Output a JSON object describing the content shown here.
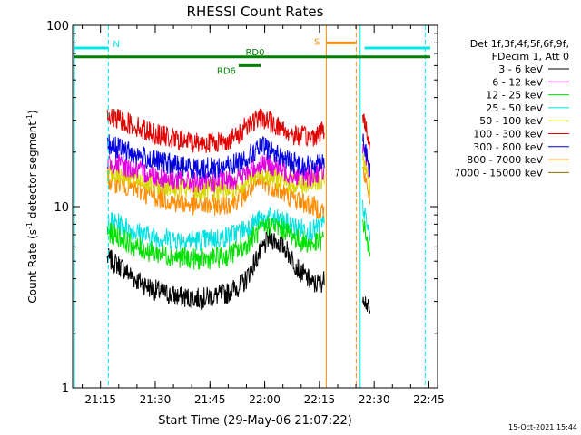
{
  "chart_data": {
    "type": "line",
    "title": "RHESSI Count Rates",
    "xlabel": "Start Time (29-May-06 21:07:22)",
    "ylabel_main": "Count Rate (s",
    "ylabel_sup": "-1",
    "ylabel_mid": " detector segment",
    "ylabel_sup2": "-1",
    "ylabel_end": ")",
    "x_range_minutes_after_21_07_22": [
      0,
      100
    ],
    "x_ticks": [
      {
        "label": "21:15",
        "t": 7.63
      },
      {
        "label": "21:30",
        "t": 22.63
      },
      {
        "label": "21:45",
        "t": 37.63
      },
      {
        "label": "22:00",
        "t": 52.63
      },
      {
        "label": "22:15",
        "t": 67.63
      },
      {
        "label": "22:30",
        "t": 82.63
      },
      {
        "label": "22:45",
        "t": 97.63
      }
    ],
    "y_scale": "log",
    "ylim": [
      1,
      100
    ],
    "y_ticks": [
      {
        "label": "1",
        "v": 1
      },
      {
        "label": "10",
        "v": 10
      },
      {
        "label": "100",
        "v": 100
      }
    ],
    "legend_header": [
      "Det 1f,3f,4f,5f,6f,9f,",
      "FDecim 1, Att 0"
    ],
    "legend_placement": "right",
    "timestamp": "15-Oct-2021 15:44",
    "series": [
      {
        "name": "3 - 6 keV",
        "color": "#000000",
        "points": [
          [
            9.5,
            5.2
          ],
          [
            13,
            4.7
          ],
          [
            17,
            4.0
          ],
          [
            22,
            3.5
          ],
          [
            28,
            3.2
          ],
          [
            35,
            3.1
          ],
          [
            42,
            3.3
          ],
          [
            47,
            3.8
          ],
          [
            50,
            5.0
          ],
          [
            54,
            6.8
          ],
          [
            58,
            6.0
          ],
          [
            62,
            4.5
          ],
          [
            66,
            3.7
          ],
          [
            69,
            3.9
          ]
        ],
        "points_b": [
          [
            79.5,
            3.3
          ],
          [
            81.5,
            2.6
          ]
        ]
      },
      {
        "name": "6 - 12 keV",
        "color": "#e000e0",
        "points": [
          [
            9.5,
            17.5
          ],
          [
            13,
            17
          ],
          [
            17,
            16
          ],
          [
            22,
            15
          ],
          [
            28,
            14
          ],
          [
            35,
            13.5
          ],
          [
            42,
            13.8
          ],
          [
            46,
            14.5
          ],
          [
            49,
            16
          ],
          [
            52,
            17.5
          ],
          [
            56,
            16.5
          ],
          [
            60,
            15
          ],
          [
            65,
            14.8
          ],
          [
            69,
            16
          ]
        ],
        "points_b": [
          [
            79.5,
            22
          ],
          [
            81.5,
            14
          ]
        ]
      },
      {
        "name": "12 - 25 keV",
        "color": "#00e000",
        "points": [
          [
            9.5,
            7.2
          ],
          [
            13,
            6.8
          ],
          [
            17,
            6.0
          ],
          [
            22,
            5.6
          ],
          [
            28,
            5.3
          ],
          [
            35,
            5.1
          ],
          [
            42,
            5.3
          ],
          [
            47,
            6.0
          ],
          [
            50,
            7.0
          ],
          [
            54,
            8.0
          ],
          [
            58,
            7.5
          ],
          [
            62,
            6.5
          ],
          [
            66,
            6.2
          ],
          [
            69,
            6.6
          ]
        ],
        "points_b": [
          [
            79.5,
            8.5
          ],
          [
            81.5,
            5.4
          ]
        ]
      },
      {
        "name": "25 - 50 keV",
        "color": "#00e0e0",
        "points": [
          [
            9.5,
            8.3
          ],
          [
            13,
            8.0
          ],
          [
            17,
            7.3
          ],
          [
            22,
            6.8
          ],
          [
            28,
            6.6
          ],
          [
            35,
            6.5
          ],
          [
            42,
            6.8
          ],
          [
            47,
            7.5
          ],
          [
            50,
            8.2
          ],
          [
            54,
            8.7
          ],
          [
            58,
            8.2
          ],
          [
            62,
            7.6
          ],
          [
            66,
            7.4
          ],
          [
            69,
            8.0
          ]
        ],
        "points_b": [
          [
            79.5,
            10
          ],
          [
            81.5,
            6.8
          ]
        ]
      },
      {
        "name": "50 - 100 keV",
        "color": "#d8d800",
        "points": [
          [
            9.5,
            15.5
          ],
          [
            13,
            15.2
          ],
          [
            17,
            14.3
          ],
          [
            22,
            13.5
          ],
          [
            28,
            12.8
          ],
          [
            35,
            12.2
          ],
          [
            42,
            12.4
          ],
          [
            46,
            13.2
          ],
          [
            49,
            14.3
          ],
          [
            52,
            15.3
          ],
          [
            56,
            14.3
          ],
          [
            60,
            13.4
          ],
          [
            65,
            13.2
          ],
          [
            69,
            14.3
          ]
        ],
        "points_b": [
          [
            79.5,
            19
          ],
          [
            81.5,
            12.5
          ]
        ]
      },
      {
        "name": "100 - 300 keV",
        "color": "#e00000",
        "points": [
          [
            9.5,
            31
          ],
          [
            13,
            30
          ],
          [
            17,
            28
          ],
          [
            22,
            25.5
          ],
          [
            28,
            23.5
          ],
          [
            35,
            22.5
          ],
          [
            42,
            23
          ],
          [
            46,
            25
          ],
          [
            47,
            28
          ],
          [
            52,
            31
          ],
          [
            56,
            28
          ],
          [
            60,
            25
          ],
          [
            65,
            24
          ],
          [
            69,
            26.5
          ]
        ],
        "points_b": [
          [
            79.5,
            32
          ],
          [
            81.5,
            22
          ]
        ]
      },
      {
        "name": "300 - 800 keV",
        "color": "#0000e0",
        "points": [
          [
            9.5,
            22
          ],
          [
            13,
            21
          ],
          [
            17,
            19.5
          ],
          [
            22,
            18
          ],
          [
            28,
            17
          ],
          [
            35,
            16.2
          ],
          [
            42,
            16.6
          ],
          [
            46,
            17.8
          ],
          [
            49,
            19.5
          ],
          [
            52,
            21.5
          ],
          [
            56,
            19.5
          ],
          [
            60,
            17.5
          ],
          [
            65,
            16.8
          ],
          [
            69,
            18.5
          ]
        ],
        "points_b": [
          [
            79.5,
            24
          ],
          [
            81.5,
            15.5
          ]
        ]
      },
      {
        "name": "800 - 7000 keV",
        "color": "#ff8c00",
        "points": [
          [
            9.5,
            14
          ],
          [
            13,
            13.5
          ],
          [
            17,
            12.5
          ],
          [
            22,
            11.5
          ],
          [
            28,
            10.6
          ],
          [
            35,
            10.1
          ],
          [
            42,
            10.3
          ],
          [
            46,
            11.2
          ],
          [
            49,
            12.5
          ],
          [
            52,
            13.8
          ],
          [
            56,
            12.5
          ],
          [
            60,
            11.2
          ],
          [
            65,
            10.2
          ],
          [
            69,
            9.5
          ]
        ],
        "points_b": [
          [
            79.5,
            16
          ],
          [
            81.5,
            11
          ]
        ]
      },
      {
        "name": "7000 - 15000 keV",
        "color": "#9a6a00",
        "points": [],
        "points_b": []
      }
    ],
    "annotations": [
      {
        "label": "N",
        "color": "#00e8e8",
        "x_range": [
          0.5,
          9.8
        ],
        "y": 75
      },
      {
        "label": "",
        "color": "#00e8e8",
        "x_range": [
          80,
          98
        ],
        "y": 75
      },
      {
        "label": "S",
        "color": "#ff8c00",
        "x_range": [
          69.5,
          77.5
        ],
        "y": 80
      },
      {
        "label": "RD0",
        "color": "#008000",
        "x_range": [
          0.5,
          98
        ],
        "y": 67
      },
      {
        "label": "RD6",
        "color": "#008000",
        "x_range": [
          45.5,
          51.5
        ],
        "y": 60
      }
    ],
    "vertical_lines": [
      {
        "t": 0.5,
        "color": "#00e8e8",
        "style": "solid"
      },
      {
        "t": 9.8,
        "color": "#00e8e8",
        "style": "dashed"
      },
      {
        "t": 69.5,
        "color": "#ff8c00",
        "style": "solid"
      },
      {
        "t": 77.7,
        "color": "#ff8c00",
        "style": "dashed"
      },
      {
        "t": 78.8,
        "color": "#00e8e8",
        "style": "solid"
      },
      {
        "t": 96.6,
        "color": "#00e8e8",
        "style": "dashed"
      }
    ]
  }
}
